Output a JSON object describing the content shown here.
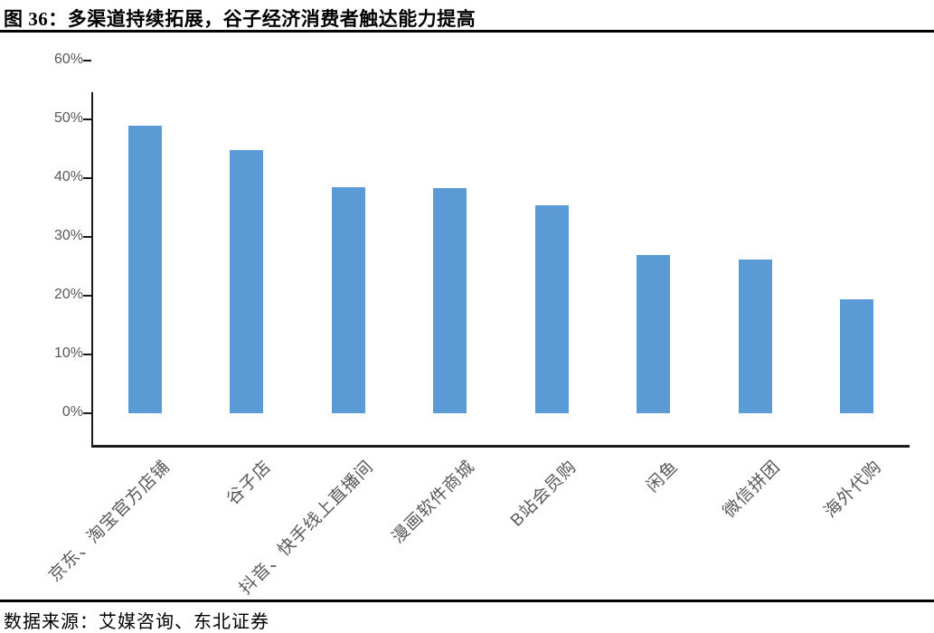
{
  "figure": {
    "title": "图 36：多渠道持续拓展，谷子经济消费者触达能力提高",
    "source": "数据来源：艾媒咨询、东北证券"
  },
  "chart_data": {
    "type": "bar",
    "title": "图 36：多渠道持续拓展，谷子经济消费者触达能力提高",
    "categories": [
      "京东、淘宝官方店铺",
      "谷子店",
      "抖音、快手线上直播间",
      "漫画软件商城",
      "B站会员购",
      "闲鱼",
      "微信拼团",
      "海外代购"
    ],
    "values": [
      49.0,
      44.7,
      38.5,
      38.3,
      35.4,
      26.9,
      26.2,
      19.4
    ],
    "xlabel": "",
    "ylabel": "",
    "ylim": [
      0,
      60
    ],
    "ytick_step": 10,
    "ytick_labels": [
      "0%",
      "10%",
      "20%",
      "30%",
      "40%",
      "50%",
      "60%"
    ],
    "bar_color": "#5B9BD5",
    "axis_color": "#1a1a1a",
    "tick_label_color": "#595959",
    "grid": false,
    "legend": "none"
  }
}
